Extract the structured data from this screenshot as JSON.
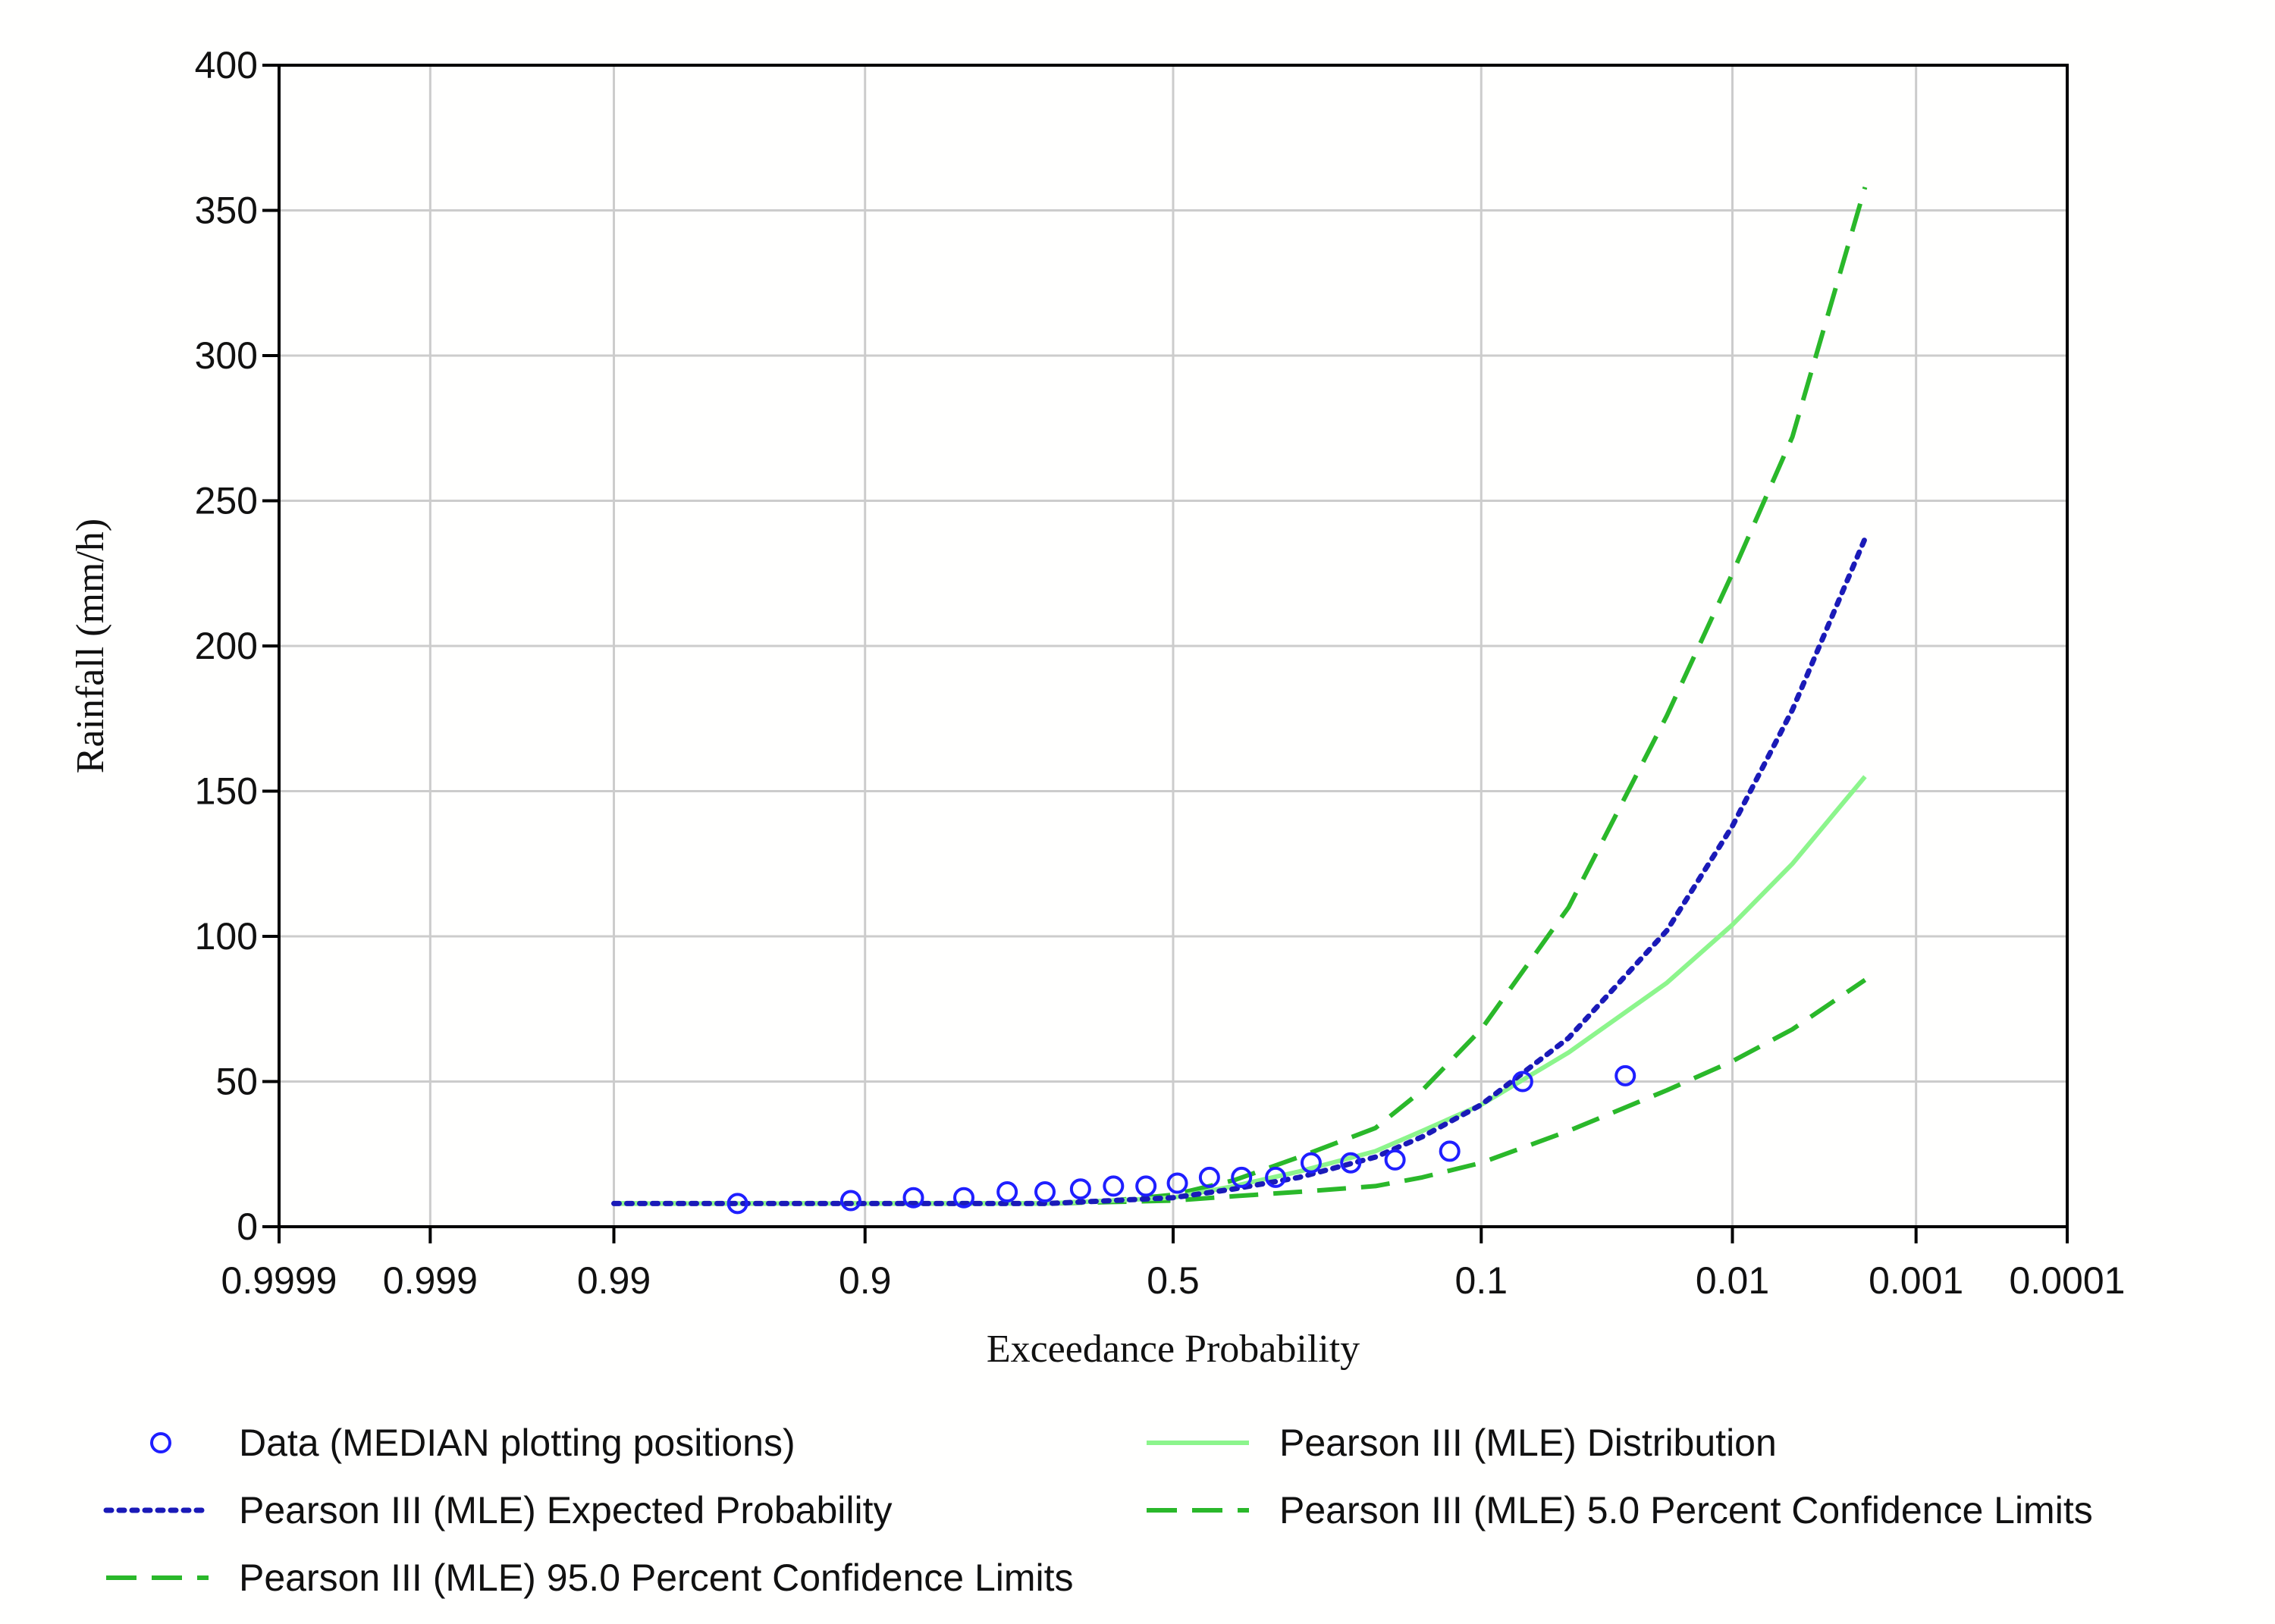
{
  "chart_data": {
    "type": "line",
    "title": "",
    "xlabel": "Exceedance Probability",
    "ylabel": "Rainfall (mm/h)",
    "x_scale": "normal-probability",
    "x_direction": "decreasing",
    "x_ticks": [
      0.9999,
      0.999,
      0.99,
      0.9,
      0.5,
      0.1,
      0.01,
      0.001,
      0.0001
    ],
    "x_tick_labels": [
      "0.9999",
      "0.999",
      "0.99",
      "0.9",
      "0.5",
      "0.1",
      "0.01",
      "0.001",
      "0.0001"
    ],
    "xlim": [
      0.9999,
      0.0001
    ],
    "ylim": [
      0,
      400
    ],
    "y_ticks": [
      0,
      50,
      100,
      150,
      200,
      250,
      300,
      350,
      400
    ],
    "y_tick_labels": [
      "0",
      "50",
      "100",
      "150",
      "200",
      "250",
      "300",
      "350",
      "400"
    ],
    "grid": true,
    "legend_position": "bottom",
    "series": [
      {
        "name": "Data (MEDIAN plotting positions)",
        "style": "markers",
        "marker": "open-circle",
        "color": "#1f1fff",
        "x": [
          0.965,
          0.91,
          0.86,
          0.808,
          0.755,
          0.703,
          0.65,
          0.598,
          0.545,
          0.493,
          0.44,
          0.388,
          0.335,
          0.283,
          0.23,
          0.178,
          0.125,
          0.073,
          0.03
        ],
        "y": [
          8,
          9,
          10,
          10,
          12,
          12,
          13,
          14,
          14,
          15,
          17,
          17,
          17,
          22,
          22,
          23,
          26,
          50,
          52
        ]
      },
      {
        "name": "Pearson III (MLE) Expected Probability",
        "style": "dotted",
        "color": "#1a1ab8",
        "x": [
          0.99,
          0.9,
          0.8,
          0.7,
          0.6,
          0.5,
          0.4,
          0.3,
          0.2,
          0.15,
          0.1,
          0.05,
          0.02,
          0.01,
          0.005,
          0.002
        ],
        "y": [
          8,
          8,
          8,
          8,
          9,
          10,
          13,
          17,
          24,
          31,
          42,
          65,
          102,
          138,
          178,
          237
        ]
      },
      {
        "name": "Pearson III (MLE) Distribution",
        "style": "solid",
        "color": "#8cf58c",
        "x": [
          0.99,
          0.9,
          0.8,
          0.7,
          0.6,
          0.5,
          0.4,
          0.3,
          0.2,
          0.15,
          0.1,
          0.05,
          0.02,
          0.01,
          0.005,
          0.002
        ],
        "y": [
          8,
          8,
          8,
          8,
          9,
          10,
          14,
          19,
          26,
          33,
          42,
          60,
          84,
          104,
          125,
          155
        ]
      },
      {
        "name": "Pearson III (MLE) 5.0 Percent Confidence Limits",
        "style": "dashed",
        "color": "#2ab82a",
        "x": [
          0.99,
          0.9,
          0.8,
          0.7,
          0.6,
          0.5,
          0.4,
          0.3,
          0.2,
          0.15,
          0.1,
          0.05,
          0.02,
          0.01,
          0.005,
          0.002
        ],
        "y": [
          8,
          8,
          8,
          8,
          8.5,
          9,
          10.5,
          12,
          14,
          17,
          22,
          33,
          47,
          57,
          68,
          85
        ]
      },
      {
        "name": "Pearson III (MLE) 95.0 Percent Confidence Limits",
        "style": "dashed",
        "color": "#2ab82a",
        "x": [
          0.99,
          0.9,
          0.8,
          0.7,
          0.6,
          0.5,
          0.4,
          0.3,
          0.2,
          0.15,
          0.1,
          0.05,
          0.02,
          0.01,
          0.005,
          0.002
        ],
        "y": [
          8,
          8,
          8,
          8,
          9,
          11,
          16,
          24,
          34,
          47,
          68,
          110,
          176,
          225,
          272,
          358
        ]
      }
    ]
  }
}
